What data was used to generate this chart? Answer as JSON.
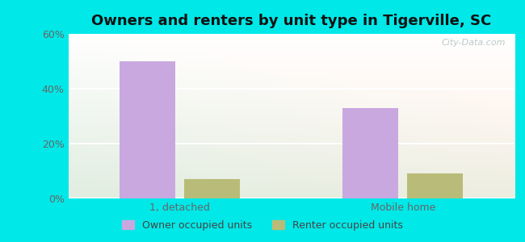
{
  "title": "Owners and renters by unit type in Tigerville, SC",
  "categories": [
    "1, detached",
    "Mobile home"
  ],
  "owner_values": [
    50,
    33
  ],
  "renter_values": [
    7,
    9
  ],
  "owner_color": "#c9a8e0",
  "renter_color": "#b8bc78",
  "ylim": [
    0,
    60
  ],
  "yticks": [
    0,
    20,
    40,
    60
  ],
  "ytick_labels": [
    "0%",
    "20%",
    "40%",
    "60%"
  ],
  "background_outer": "#00e8e8",
  "legend_owner": "Owner occupied units",
  "legend_renter": "Renter occupied units",
  "bar_width": 0.25,
  "watermark": "City-Data.com",
  "title_fontsize": 13,
  "tick_fontsize": 9,
  "legend_fontsize": 9
}
